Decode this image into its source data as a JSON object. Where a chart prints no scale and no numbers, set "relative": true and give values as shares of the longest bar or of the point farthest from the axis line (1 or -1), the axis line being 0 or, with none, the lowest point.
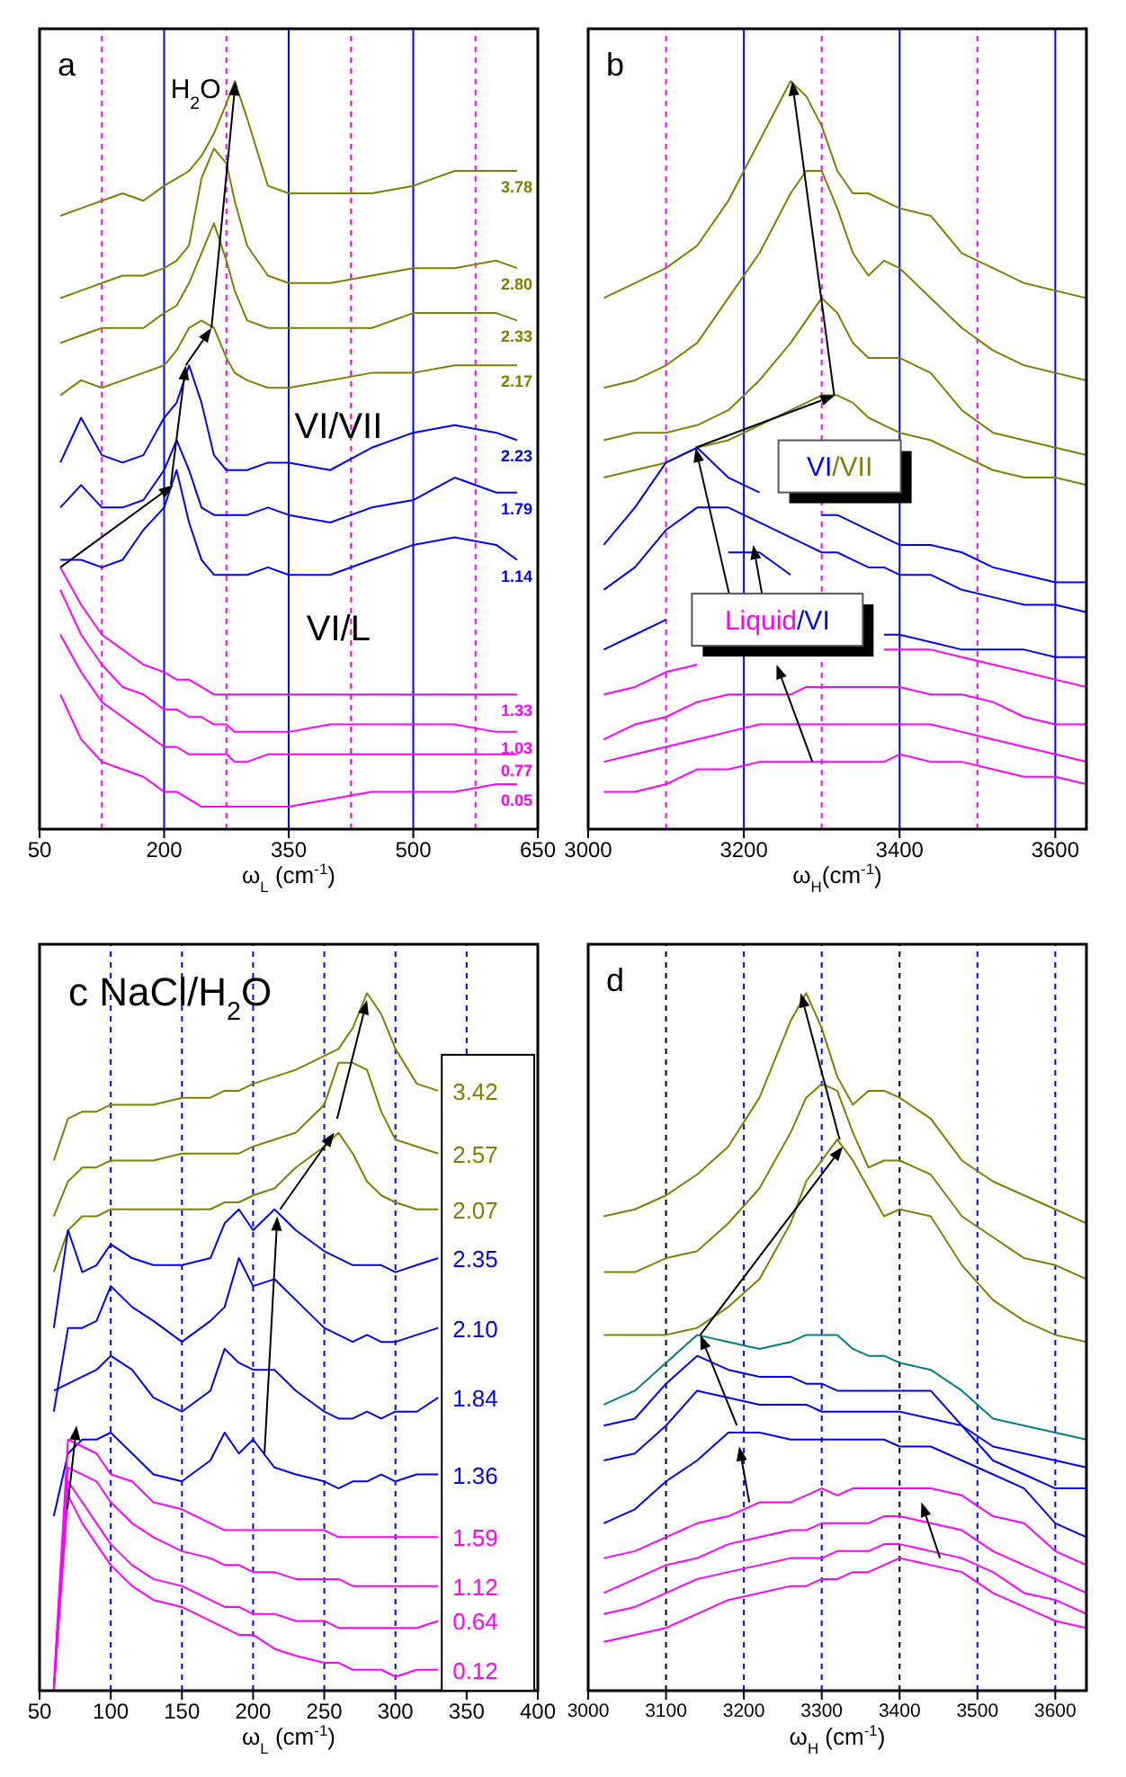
{
  "chart_data": [
    {
      "type": "line",
      "title": "a",
      "xlabel": "ω$_{L}$ (cm$^{-1}$)",
      "annotations": [
        "H$_{2}$O",
        "VI/VII",
        "VI/L"
      ],
      "relative": true,
      "xlim": [
        50,
        650
      ],
      "xticks": [
        50,
        200,
        350,
        500,
        650
      ],
      "x": [
        75,
        100,
        125,
        150,
        175,
        200,
        215,
        230,
        245,
        260,
        275,
        285,
        300,
        325,
        350,
        400,
        450,
        500,
        550,
        600,
        625
      ],
      "ref_lines": [
        {
          "axis": "x",
          "value": 125,
          "color": "#ff00ff",
          "line_style": "dashed"
        },
        {
          "axis": "x",
          "value": 200,
          "color": "#0000ff",
          "line_style": "solid"
        },
        {
          "axis": "x",
          "value": 275,
          "color": "#ff00ff",
          "line_style": "dashed"
        },
        {
          "axis": "x",
          "value": 350,
          "color": "#0000ff",
          "line_style": "solid"
        },
        {
          "axis": "x",
          "value": 425,
          "color": "#ff00ff",
          "line_style": "dashed"
        },
        {
          "axis": "x",
          "value": 500,
          "color": "#0000ff",
          "line_style": "solid"
        },
        {
          "axis": "x",
          "value": 575,
          "color": "#ff00ff",
          "line_style": "dashed"
        }
      ],
      "series": [
        {
          "name": "3.78",
          "color": "#808000",
          "values": [
            0.82,
            0.83,
            0.84,
            0.85,
            0.84,
            0.86,
            0.87,
            0.88,
            0.9,
            0.93,
            0.97,
            1,
            0.95,
            0.86,
            0.85,
            0.85,
            0.85,
            0.86,
            0.88,
            0.88,
            0.88
          ]
        },
        {
          "name": "2.80",
          "color": "#808000",
          "values": [
            0.71,
            0.72,
            0.73,
            0.74,
            0.74,
            0.75,
            0.76,
            0.78,
            0.87,
            0.91,
            0.89,
            0.84,
            0.78,
            0.74,
            0.73,
            0.73,
            0.74,
            0.75,
            0.75,
            0.76,
            0.75
          ]
        },
        {
          "name": "2.33",
          "color": "#808000",
          "values": [
            0.65,
            0.66,
            0.67,
            0.67,
            0.67,
            0.69,
            0.7,
            0.73,
            0.77,
            0.81,
            0.76,
            0.72,
            0.68,
            0.67,
            0.67,
            0.67,
            0.67,
            0.69,
            0.69,
            0.69,
            0.68
          ]
        },
        {
          "name": "2.17",
          "color": "#808000",
          "values": [
            0.58,
            0.6,
            0.59,
            0.6,
            0.61,
            0.62,
            0.64,
            0.67,
            0.68,
            0.67,
            0.63,
            0.61,
            0.6,
            0.59,
            0.59,
            0.6,
            0.61,
            0.61,
            0.62,
            0.62,
            0.62
          ]
        },
        {
          "name": "2.23",
          "color": "#0000ff",
          "values": [
            0.49,
            0.55,
            0.5,
            0.49,
            0.5,
            0.55,
            0.57,
            0.62,
            0.57,
            0.5,
            0.48,
            0.48,
            0.48,
            0.49,
            0.49,
            0.48,
            0.51,
            0.53,
            0.54,
            0.53,
            0.52
          ]
        },
        {
          "name": "1.79",
          "color": "#0000ff",
          "values": [
            0.43,
            0.46,
            0.43,
            0.43,
            0.44,
            0.48,
            0.52,
            0.48,
            0.43,
            0.42,
            0.42,
            0.42,
            0.42,
            0.43,
            0.42,
            0.41,
            0.43,
            0.44,
            0.47,
            0.45,
            0.45
          ]
        },
        {
          "name": "1.14",
          "color": "#0000ff",
          "values": [
            0.36,
            0.36,
            0.35,
            0.36,
            0.4,
            0.43,
            0.48,
            0.41,
            0.36,
            0.34,
            0.34,
            0.34,
            0.34,
            0.35,
            0.34,
            0.34,
            0.36,
            0.38,
            0.39,
            0.38,
            0.36
          ]
        },
        {
          "name": "1.33",
          "color": "#ff00ff",
          "values": [
            0.35,
            0.3,
            0.26,
            0.24,
            0.22,
            0.21,
            0.2,
            0.2,
            0.19,
            0.18,
            0.18,
            0.18,
            0.18,
            0.18,
            0.18,
            0.18,
            0.18,
            0.18,
            0.18,
            0.18,
            0.18
          ]
        },
        {
          "name": "1.03",
          "color": "#ff00ff",
          "values": [
            0.32,
            0.26,
            0.22,
            0.19,
            0.18,
            0.16,
            0.16,
            0.15,
            0.15,
            0.14,
            0.14,
            0.13,
            0.13,
            0.13,
            0.13,
            0.14,
            0.14,
            0.14,
            0.14,
            0.13,
            0.13
          ]
        },
        {
          "name": "0.77",
          "color": "#ff00ff",
          "values": [
            0.26,
            0.21,
            0.17,
            0.15,
            0.13,
            0.11,
            0.11,
            0.1,
            0.1,
            0.1,
            0.1,
            0.09,
            0.09,
            0.1,
            0.1,
            0.1,
            0.1,
            0.1,
            0.1,
            0.1,
            0.1
          ]
        },
        {
          "name": "0.05",
          "color": "#ff00ff",
          "values": [
            0.18,
            0.12,
            0.09,
            0.08,
            0.07,
            0.05,
            0.05,
            0.04,
            0.03,
            0.03,
            0.03,
            0.03,
            0.03,
            0.03,
            0.03,
            0.04,
            0.05,
            0.05,
            0.05,
            0.06,
            0.06
          ]
        }
      ]
    },
    {
      "type": "line",
      "title": "b",
      "xlabel": "ω$_{H}$(cm$^{-1}$)",
      "annotations": [
        "VI/VII",
        "Liquid/VI"
      ],
      "relative": true,
      "xlim": [
        3000,
        3640
      ],
      "xticks": [
        3000,
        3200,
        3400,
        3600
      ],
      "x": [
        3020,
        3060,
        3100,
        3140,
        3180,
        3220,
        3260,
        3280,
        3300,
        3320,
        3340,
        3360,
        3380,
        3400,
        3440,
        3480,
        3520,
        3560,
        3600,
        3640
      ],
      "ref_lines": [
        {
          "axis": "x",
          "value": 3100,
          "color": "#ff00ff",
          "line_style": "dashed"
        },
        {
          "axis": "x",
          "value": 3200,
          "color": "#0000ff",
          "line_style": "solid"
        },
        {
          "axis": "x",
          "value": 3300,
          "color": "#ff00ff",
          "line_style": "dashed"
        },
        {
          "axis": "x",
          "value": 3400,
          "color": "#0000ff",
          "line_style": "solid"
        },
        {
          "axis": "x",
          "value": 3500,
          "color": "#ff00ff",
          "line_style": "dashed"
        },
        {
          "axis": "x",
          "value": 3600,
          "color": "#0000ff",
          "line_style": "solid"
        }
      ],
      "series": [
        {
          "color": "#808000",
          "values": [
            0.71,
            0.73,
            0.75,
            0.78,
            0.84,
            0.92,
            1,
            0.98,
            0.94,
            0.88,
            0.85,
            0.85,
            0.84,
            0.83,
            0.82,
            0.77,
            0.75,
            0.73,
            0.72,
            0.71
          ]
        },
        {
          "color": "#808000",
          "values": [
            0.59,
            0.6,
            0.62,
            0.65,
            0.71,
            0.77,
            0.85,
            0.88,
            0.88,
            0.83,
            0.77,
            0.74,
            0.76,
            0.75,
            0.71,
            0.67,
            0.64,
            0.62,
            0.61,
            0.6
          ]
        },
        {
          "color": "#808000",
          "values": [
            0.52,
            0.53,
            0.53,
            0.54,
            0.56,
            0.6,
            0.65,
            0.68,
            0.71,
            0.69,
            0.65,
            0.63,
            0.63,
            0.63,
            0.61,
            0.56,
            0.53,
            0.52,
            0.51,
            0.5
          ]
        },
        {
          "color": "#808000",
          "values": [
            0.47,
            0.48,
            0.49,
            0.51,
            0.52,
            0.54,
            0.56,
            0.57,
            0.58,
            0.58,
            0.57,
            0.55,
            0.54,
            0.53,
            0.52,
            0.5,
            0.48,
            0.47,
            0.47,
            0.46
          ]
        },
        {
          "color": "#0000ff",
          "values": [
            0.38,
            0.43,
            0.49,
            0.51,
            0.47,
            0.45,
            null,
            null,
            0.42,
            0.42,
            0.41,
            0.4,
            0.39,
            0.38,
            0.38,
            0.37,
            0.35,
            0.34,
            0.33,
            0.33
          ]
        },
        {
          "color": "#0000ff",
          "values": [
            0.32,
            0.35,
            0.4,
            0.43,
            0.43,
            0.41,
            0.39,
            0.38,
            0.37,
            0.37,
            0.36,
            0.35,
            0.35,
            0.34,
            0.34,
            0.32,
            0.31,
            0.3,
            0.3,
            0.29
          ]
        },
        {
          "color": "#0000ff",
          "values": [
            0.24,
            0.26,
            0.28,
            null,
            0.37,
            0.37,
            0.34,
            null,
            null,
            null,
            null,
            null,
            0.26,
            0.26,
            0.25,
            0.24,
            0.24,
            0.24,
            0.23,
            0.23
          ]
        },
        {
          "color": "#ff00ff",
          "values": [
            0.18,
            0.19,
            0.21,
            0.22,
            null,
            null,
            null,
            null,
            null,
            null,
            null,
            null,
            0.24,
            0.24,
            0.24,
            0.23,
            0.22,
            0.21,
            0.2,
            0.19
          ]
        },
        {
          "color": "#ff00ff",
          "values": [
            0.12,
            0.14,
            0.15,
            0.17,
            0.18,
            0.18,
            0.18,
            0.19,
            0.19,
            0.19,
            0.19,
            0.19,
            0.19,
            0.19,
            0.18,
            0.18,
            0.17,
            0.15,
            0.14,
            0.14
          ]
        },
        {
          "color": "#ff00ff",
          "values": [
            0.09,
            0.1,
            0.11,
            0.12,
            0.13,
            0.14,
            0.14,
            0.14,
            0.14,
            0.14,
            0.14,
            0.14,
            0.14,
            0.14,
            0.14,
            0.13,
            0.12,
            0.11,
            0.1,
            0.09
          ]
        },
        {
          "color": "#ff00ff",
          "values": [
            0.05,
            0.05,
            0.06,
            0.08,
            0.08,
            0.09,
            0.09,
            0.09,
            0.09,
            0.09,
            0.09,
            0.09,
            0.09,
            0.1,
            0.09,
            0.09,
            0.08,
            0.07,
            0.07,
            0.06
          ]
        }
      ]
    },
    {
      "type": "line",
      "title": "c NaCl/H$_{2}$O",
      "xlabel": "ω$_{L}$ (cm$^{-1}$)",
      "relative": true,
      "xlim": [
        50,
        400
      ],
      "xticks": [
        50,
        100,
        150,
        200,
        250,
        300,
        350,
        400
      ],
      "x": [
        60,
        70,
        80,
        90,
        100,
        115,
        130,
        150,
        170,
        180,
        190,
        200,
        215,
        230,
        250,
        260,
        270,
        280,
        290,
        300,
        315,
        330
      ],
      "ref_lines": [
        {
          "axis": "x",
          "value": 100,
          "color": "#0000ff",
          "line_style": "dashed"
        },
        {
          "axis": "x",
          "value": 150,
          "color": "#0000ff",
          "line_style": "dashed"
        },
        {
          "axis": "x",
          "value": 200,
          "color": "#0000ff",
          "line_style": "dashed"
        },
        {
          "axis": "x",
          "value": 250,
          "color": "#0000ff",
          "line_style": "dashed"
        },
        {
          "axis": "x",
          "value": 300,
          "color": "#0000ff",
          "line_style": "dashed"
        },
        {
          "axis": "x",
          "value": 350,
          "color": "#0000ff",
          "line_style": "dashed"
        }
      ],
      "series": [
        {
          "name": "3.42",
          "color": "#808000",
          "values": [
            0.76,
            0.82,
            0.83,
            0.83,
            0.84,
            0.84,
            0.84,
            0.85,
            0.85,
            0.86,
            0.86,
            0.87,
            0.88,
            0.89,
            0.91,
            0.92,
            0.95,
            1,
            0.97,
            0.92,
            0.87,
            0.86
          ]
        },
        {
          "name": "2.57",
          "color": "#808000",
          "values": [
            0.68,
            0.73,
            0.75,
            0.75,
            0.76,
            0.76,
            0.76,
            0.77,
            0.77,
            0.77,
            0.77,
            0.78,
            0.79,
            0.8,
            0.84,
            0.9,
            0.9,
            0.89,
            0.83,
            0.79,
            0.78,
            0.77
          ]
        },
        {
          "name": "2.07",
          "color": "#808000",
          "values": [
            0.6,
            0.66,
            0.68,
            0.68,
            0.69,
            0.69,
            0.69,
            0.69,
            0.69,
            0.7,
            0.7,
            0.71,
            0.72,
            0.75,
            0.78,
            0.8,
            0.77,
            0.73,
            0.71,
            0.7,
            0.69,
            0.69
          ]
        },
        {
          "name": "2.35",
          "color": "#0000ff",
          "values": [
            0.52,
            0.66,
            0.6,
            0.61,
            0.64,
            0.62,
            0.61,
            0.61,
            0.62,
            0.67,
            0.69,
            0.66,
            0.69,
            0.66,
            0.63,
            0.62,
            0.61,
            0.61,
            0.61,
            0.6,
            0.61,
            0.62
          ]
        },
        {
          "name": "2.10",
          "color": "#0000ff",
          "values": [
            0.4,
            0.52,
            0.52,
            0.53,
            0.58,
            0.55,
            0.53,
            0.5,
            0.53,
            0.55,
            0.62,
            0.58,
            0.59,
            0.56,
            0.52,
            0.51,
            0.5,
            0.51,
            0.5,
            0.5,
            0.51,
            0.52
          ]
        },
        {
          "name": "1.84",
          "color": "#0000ff",
          "values": [
            0.43,
            0.44,
            0.45,
            0.46,
            0.48,
            0.46,
            0.42,
            0.4,
            0.43,
            0.49,
            0.47,
            0.46,
            0.46,
            0.43,
            0.4,
            0.39,
            0.39,
            0.4,
            0.39,
            0.4,
            0.4,
            0.42
          ]
        },
        {
          "name": "1.36",
          "color": "#0000ff",
          "values": [
            0.25,
            0.34,
            0.36,
            0.36,
            0.37,
            0.34,
            0.31,
            0.3,
            0.33,
            0.37,
            0.34,
            0.36,
            0.32,
            0.31,
            0.3,
            0.29,
            0.3,
            0.3,
            0.31,
            0.3,
            0.31,
            0.31
          ]
        },
        {
          "name": "1.59",
          "color": "#ff00ff",
          "values": [
            0.01,
            0.36,
            0.35,
            0.34,
            0.31,
            0.3,
            0.27,
            0.26,
            0.24,
            0.23,
            0.23,
            0.23,
            0.23,
            0.23,
            0.23,
            0.22,
            0.22,
            0.22,
            0.22,
            0.22,
            0.22,
            0.22
          ]
        },
        {
          "name": "1.12",
          "color": "#ff00ff",
          "values": [
            0,
            0.32,
            0.31,
            0.3,
            0.27,
            0.24,
            0.22,
            0.2,
            0.19,
            0.18,
            0.18,
            0.17,
            0.17,
            0.16,
            0.16,
            0.16,
            0.15,
            0.15,
            0.15,
            0.15,
            0.15,
            0.15
          ]
        },
        {
          "name": "0.64",
          "color": "#ff00ff",
          "values": [
            0,
            0.3,
            0.27,
            0.24,
            0.21,
            0.18,
            0.16,
            0.15,
            0.13,
            0.12,
            0.12,
            0.11,
            0.11,
            0.1,
            0.1,
            0.09,
            0.09,
            0.09,
            0.09,
            0.09,
            0.09,
            0.1
          ]
        },
        {
          "name": "0.12",
          "color": "#ff00ff",
          "values": [
            0,
            0.28,
            0.24,
            0.21,
            0.18,
            0.15,
            0.13,
            0.12,
            0.1,
            0.09,
            0.08,
            0.08,
            0.06,
            0.05,
            0.04,
            0.04,
            0.03,
            0.03,
            0.03,
            0.02,
            0.03,
            0.03
          ]
        }
      ]
    },
    {
      "type": "line",
      "title": "d",
      "xlabel": "ω$_{H}$ (cm$^{-1}$)",
      "relative": true,
      "xlim": [
        3000,
        3640
      ],
      "xticks": [
        3000,
        3100,
        3200,
        3300,
        3400,
        3500,
        3600
      ],
      "x": [
        3020,
        3060,
        3100,
        3140,
        3180,
        3220,
        3260,
        3280,
        3300,
        3320,
        3340,
        3360,
        3380,
        3400,
        3440,
        3480,
        3520,
        3560,
        3600,
        3640
      ],
      "ref_lines": [
        {
          "axis": "x",
          "value": 3100,
          "color": "#000000",
          "line_style": "dashed"
        },
        {
          "axis": "x",
          "value": 3200,
          "color": "#0000ff",
          "line_style": "dashed"
        },
        {
          "axis": "x",
          "value": 3300,
          "color": "#0000ff",
          "line_style": "dashed"
        },
        {
          "axis": "x",
          "value": 3400,
          "color": "#000000",
          "line_style": "dashed"
        },
        {
          "axis": "x",
          "value": 3500,
          "color": "#0000ff",
          "line_style": "dashed"
        },
        {
          "axis": "x",
          "value": 3600,
          "color": "#0000ff",
          "line_style": "dashed"
        }
      ],
      "series": [
        {
          "color": "#808000",
          "values": [
            0.68,
            0.69,
            0.71,
            0.74,
            0.78,
            0.85,
            0.96,
            1,
            0.95,
            0.88,
            0.84,
            0.86,
            0.86,
            0.85,
            0.82,
            0.76,
            0.73,
            0.71,
            0.69,
            0.67
          ]
        },
        {
          "color": "#808000",
          "values": [
            0.6,
            0.6,
            0.62,
            0.63,
            0.67,
            0.72,
            0.8,
            0.85,
            0.87,
            0.86,
            0.8,
            0.75,
            0.76,
            0.76,
            0.74,
            0.68,
            0.65,
            0.62,
            0.61,
            0.59
          ]
        },
        {
          "color": "#808000",
          "values": [
            0.51,
            0.51,
            0.51,
            0.52,
            0.55,
            0.59,
            0.67,
            0.73,
            0.76,
            0.79,
            0.76,
            0.72,
            0.68,
            0.69,
            0.68,
            0.61,
            0.56,
            0.53,
            0.51,
            0.5
          ]
        },
        {
          "color": "#008080",
          "values": [
            0.41,
            0.43,
            0.47,
            0.51,
            0.5,
            0.49,
            0.5,
            0.51,
            0.51,
            0.51,
            0.49,
            0.48,
            0.48,
            0.47,
            0.46,
            0.43,
            0.39,
            0.38,
            0.37,
            0.36
          ]
        },
        {
          "color": "#0000ff",
          "values": [
            0.38,
            0.39,
            0.44,
            0.48,
            0.46,
            0.45,
            0.45,
            0.44,
            0.44,
            0.43,
            0.43,
            0.43,
            0.43,
            0.43,
            0.43,
            0.38,
            0.35,
            0.34,
            0.33,
            0.32
          ]
        },
        {
          "color": "#0000ff",
          "values": [
            0.33,
            0.34,
            0.38,
            0.43,
            0.42,
            0.41,
            0.41,
            0.41,
            0.4,
            0.4,
            0.4,
            0.4,
            0.4,
            0.4,
            0.39,
            0.38,
            0.33,
            0.31,
            0.29,
            0.29
          ]
        },
        {
          "color": "#0000ff",
          "values": [
            0.24,
            0.26,
            0.3,
            0.33,
            0.37,
            0.37,
            0.36,
            0.36,
            0.36,
            0.36,
            0.36,
            0.36,
            0.36,
            0.35,
            0.35,
            0.33,
            0.31,
            0.29,
            0.24,
            0.22
          ]
        },
        {
          "color": "#ff00ff",
          "values": [
            0.19,
            0.2,
            0.22,
            0.24,
            0.25,
            0.27,
            0.27,
            0.28,
            0.29,
            0.28,
            0.29,
            0.29,
            0.29,
            0.29,
            0.29,
            0.28,
            0.25,
            0.24,
            0.2,
            0.18
          ]
        },
        {
          "color": "#ff00ff",
          "values": [
            0.14,
            0.16,
            0.18,
            0.19,
            0.21,
            0.22,
            0.23,
            0.23,
            0.24,
            0.24,
            0.24,
            0.24,
            0.25,
            0.25,
            0.24,
            0.23,
            0.2,
            0.18,
            0.16,
            0.14
          ]
        },
        {
          "color": "#ff00ff",
          "values": [
            0.11,
            0.12,
            0.14,
            0.16,
            0.17,
            0.18,
            0.19,
            0.19,
            0.19,
            0.2,
            0.2,
            0.2,
            0.21,
            0.21,
            0.2,
            0.19,
            0.17,
            0.14,
            0.13,
            0.11
          ]
        },
        {
          "color": "#ff00ff",
          "values": [
            0.07,
            0.08,
            0.09,
            0.11,
            0.13,
            0.14,
            0.15,
            0.15,
            0.16,
            0.16,
            0.17,
            0.17,
            0.18,
            0.19,
            0.18,
            0.17,
            0.14,
            0.12,
            0.1,
            0.09
          ]
        }
      ]
    }
  ]
}
